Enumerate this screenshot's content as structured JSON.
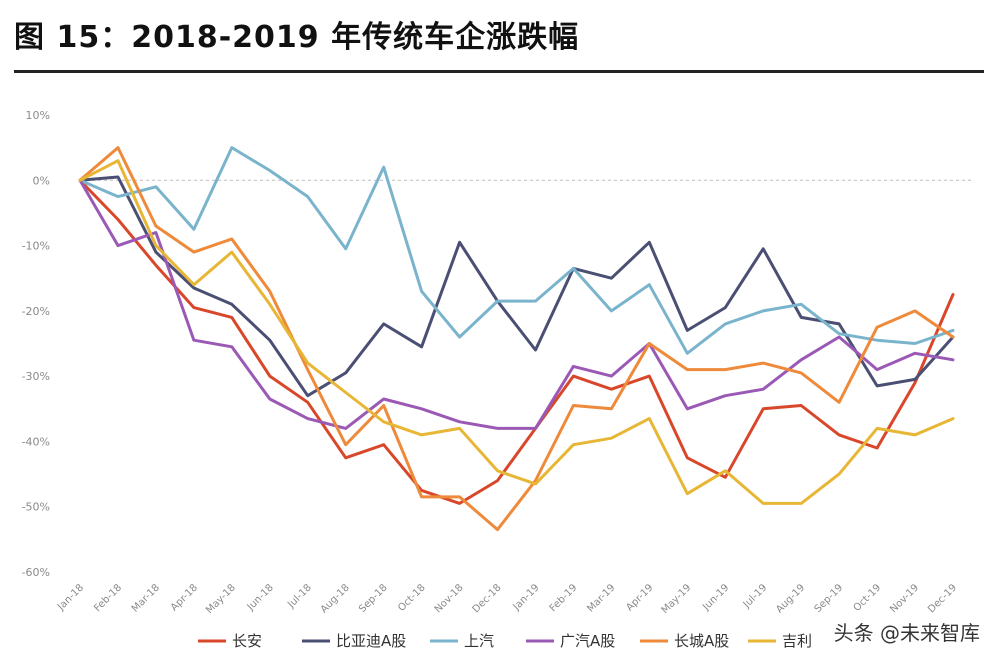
{
  "title": "图 15：2018-2019 年传统车企涨跌幅",
  "watermark": "头条 @未来智库",
  "chart_data": {
    "type": "line",
    "x": [
      "Jan-18",
      "Feb-18",
      "Mar-18",
      "Apr-18",
      "May-18",
      "Jun-18",
      "Jul-18",
      "Aug-18",
      "Sep-18",
      "Oct-18",
      "Nov-18",
      "Dec-18",
      "Jan-19",
      "Feb-19",
      "Mar-19",
      "Apr-19",
      "May-19",
      "Jun-19",
      "Jul-19",
      "Aug-19",
      "Sep-19",
      "Oct-19",
      "Nov-19",
      "Dec-19"
    ],
    "yticks": [
      "10%",
      "0%",
      "-10%",
      "-20%",
      "-30%",
      "-40%",
      "-50%",
      "-60%"
    ],
    "ylim": [
      -60,
      10
    ],
    "grid": "dashed zero line only",
    "legend_position": "bottom",
    "series": [
      {
        "name": "长安",
        "color": "#d9472b",
        "values": [
          0,
          -6,
          -13,
          -19.5,
          -21,
          -30,
          -34,
          -42.5,
          -40.5,
          -47.5,
          -49.5,
          -46,
          -38,
          -30,
          -32,
          -30,
          -42.5,
          -45.5,
          -35,
          -34.5,
          -39,
          -41,
          -31,
          -17.5
        ]
      },
      {
        "name": "比亚迪A股",
        "color": "#4a4f73",
        "values": [
          0,
          0.5,
          -11,
          -16.5,
          -19,
          -24.5,
          -33,
          -29.5,
          -22,
          -25.5,
          -9.5,
          -18.5,
          -26,
          -13.5,
          -15,
          -9.5,
          -23,
          -19.5,
          -10.5,
          -21,
          -22,
          -31.5,
          -30.5,
          -24
        ]
      },
      {
        "name": "上汽",
        "color": "#7ab4cc",
        "values": [
          0,
          -2.5,
          -1,
          -7.5,
          5,
          1.5,
          -2.5,
          -10.5,
          2,
          -17,
          -24,
          -18.5,
          -18.5,
          -13.5,
          -20,
          -16,
          -26.5,
          -22,
          -20,
          -19,
          -23.5,
          -24.5,
          -25,
          -23
        ]
      },
      {
        "name": "广汽A股",
        "color": "#9b59b6",
        "values": [
          0,
          -10,
          -8,
          -24.5,
          -25.5,
          -33.5,
          -36.5,
          -38,
          -33.5,
          -35,
          -37,
          -38,
          -38,
          -28.5,
          -30,
          -25,
          -35,
          -33,
          -32,
          -27.5,
          -24,
          -29,
          -26.5,
          -27.5
        ]
      },
      {
        "name": "长城A股",
        "color": "#ee8a3a",
        "values": [
          0,
          5,
          -7,
          -11,
          -9,
          -17,
          -29,
          -40.5,
          -34.5,
          -48.5,
          -48.5,
          -53.5,
          -46,
          -34.5,
          -35,
          -25,
          -29,
          -29,
          -28,
          -29.5,
          -34,
          -22.5,
          -20,
          -24
        ]
      },
      {
        "name": "吉利",
        "color": "#e8b635",
        "values": [
          0,
          3,
          -10,
          -16,
          -11,
          -19,
          -28,
          -32.5,
          -37,
          -39,
          -38,
          -44.5,
          -46.5,
          -40.5,
          -39.5,
          -36.5,
          -48,
          -44.5,
          -49.5,
          -49.5,
          -45,
          -38,
          -39,
          -36.5
        ]
      }
    ]
  }
}
